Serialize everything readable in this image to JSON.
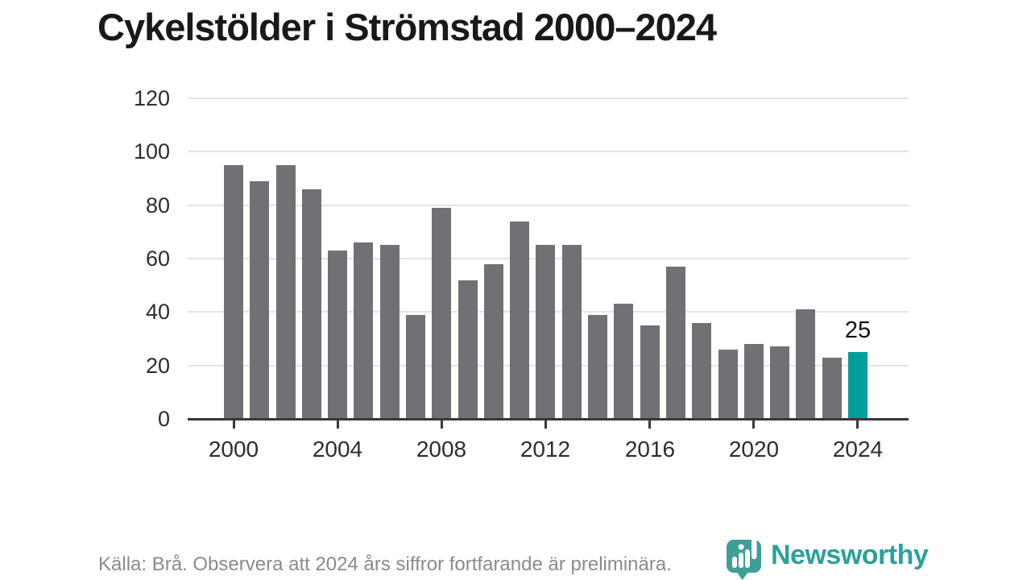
{
  "chart_data": {
    "type": "bar",
    "title": "Cykelstölder i Strömstad 2000–2024",
    "categories": [
      2000,
      2001,
      2002,
      2003,
      2004,
      2005,
      2006,
      2007,
      2008,
      2009,
      2010,
      2011,
      2012,
      2013,
      2014,
      2015,
      2016,
      2017,
      2018,
      2019,
      2020,
      2021,
      2022,
      2023,
      2024
    ],
    "values": [
      95,
      89,
      95,
      86,
      63,
      66,
      65,
      39,
      79,
      52,
      58,
      74,
      65,
      65,
      39,
      43,
      35,
      57,
      36,
      26,
      28,
      27,
      41,
      23,
      25
    ],
    "highlight": {
      "year": 2024,
      "value": 25,
      "label": "25"
    },
    "ylim": [
      0,
      120
    ],
    "yticks": [
      0,
      20,
      40,
      60,
      80,
      100,
      120
    ],
    "xticks": [
      2000,
      2004,
      2008,
      2012,
      2016,
      2020,
      2024
    ],
    "grid": true,
    "legend": "none",
    "xlabel": "",
    "ylabel": ""
  },
  "source_note": "Källa: Brå. Observera att 2024 års siffror fortfarande är preliminära.",
  "logo": {
    "brand": "Newsworthy",
    "wordmark_color": "#2aa19a",
    "icon_color": "#3f9f98",
    "icon_bar_color": "#ffffff"
  },
  "colors": {
    "bar": "#707075",
    "highlight_bar": "#00a09a",
    "grid": "#e4e4e4",
    "axis": "#38383a",
    "tick_text": "#2d2d2d",
    "title_text": "#191919",
    "muted_text": "#8b8b8b",
    "value_label": "#111111",
    "background": "#ffffff"
  }
}
